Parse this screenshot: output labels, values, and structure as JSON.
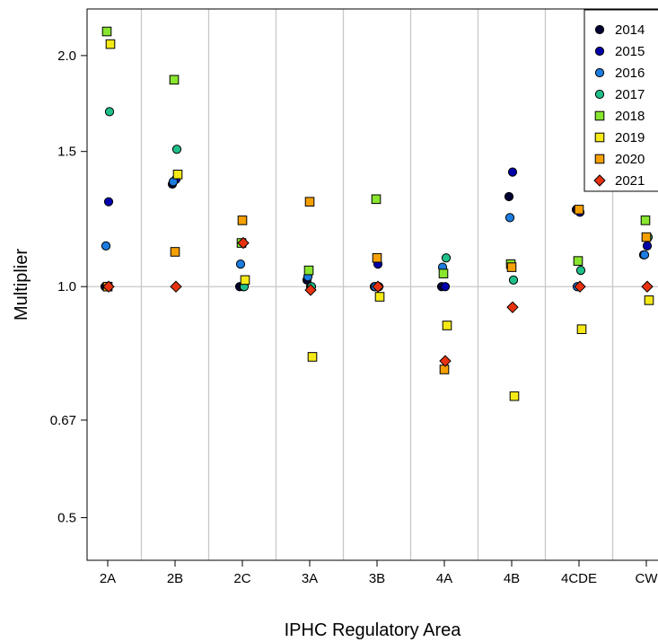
{
  "chart_data": {
    "type": "scatter",
    "ylabel": "Multiplier",
    "xlabel": "IPHC Regulatory Area",
    "y_scale": "log",
    "ylim": [
      0.44,
      2.3
    ],
    "yticks": [
      "0.5",
      "0.67",
      "1.0",
      "1.5",
      "2.0"
    ],
    "ytick_values": [
      0.5,
      0.67,
      1.0,
      1.5,
      2.0
    ],
    "reference_line": 1.0,
    "categories": [
      "2A",
      "2B",
      "2C",
      "3A",
      "3B",
      "4A",
      "4B",
      "4CDE",
      "CW"
    ],
    "series": [
      {
        "name": "2014",
        "color": "#000033",
        "marker": "circle",
        "values": [
          1.0,
          1.36,
          1.0,
          1.02,
          1.0,
          1.0,
          1.31,
          1.26,
          1.1
        ]
      },
      {
        "name": "2015",
        "color": "#0000aa",
        "marker": "circle",
        "values": [
          1.29,
          1.38,
          1.0,
          1.0,
          1.07,
          1.0,
          1.41,
          1.25,
          1.13
        ]
      },
      {
        "name": "2016",
        "color": "#1c7ce0",
        "marker": "circle",
        "values": [
          1.13,
          1.37,
          1.07,
          1.03,
          1.0,
          1.06,
          1.23,
          1.0,
          1.1
        ]
      },
      {
        "name": "2017",
        "color": "#1fbf8a",
        "marker": "circle",
        "values": [
          1.69,
          1.51,
          1.0,
          1.0,
          1.0,
          1.09,
          1.02,
          1.05,
          1.16
        ]
      },
      {
        "name": "2018",
        "color": "#88e62e",
        "marker": "square",
        "values": [
          2.15,
          1.86,
          1.14,
          1.05,
          1.3,
          1.04,
          1.07,
          1.08,
          1.22
        ]
      },
      {
        "name": "2019",
        "color": "#f5ea16",
        "marker": "square",
        "values": [
          2.07,
          1.4,
          1.02,
          0.81,
          0.97,
          0.89,
          0.72,
          0.88,
          0.96
        ]
      },
      {
        "name": "2020",
        "color": "#f5a000",
        "marker": "square",
        "values": [
          1.0,
          1.11,
          1.22,
          1.29,
          1.09,
          0.78,
          1.06,
          1.26,
          1.16
        ]
      },
      {
        "name": "2021",
        "color": "#e8320f",
        "marker": "diamond",
        "values": [
          1.0,
          1.0,
          1.14,
          0.99,
          1.0,
          0.8,
          0.94,
          1.0,
          1.0
        ]
      }
    ]
  }
}
